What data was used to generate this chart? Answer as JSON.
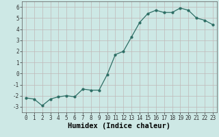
{
  "x": [
    0,
    1,
    2,
    3,
    4,
    5,
    6,
    7,
    8,
    9,
    10,
    11,
    12,
    13,
    14,
    15,
    16,
    17,
    18,
    19,
    20,
    21,
    22,
    23
  ],
  "y": [
    -2.2,
    -2.3,
    -2.9,
    -2.3,
    -2.1,
    -2.0,
    -2.1,
    -1.4,
    -1.5,
    -1.5,
    -0.1,
    1.7,
    2.0,
    3.3,
    4.6,
    5.4,
    5.7,
    5.5,
    5.5,
    5.9,
    5.7,
    5.0,
    4.8,
    4.4
  ],
  "line_color": "#2d6e65",
  "marker": "o",
  "marker_size": 2.0,
  "linewidth": 0.9,
  "background_color": "#cde8e5",
  "grid_color": "#c0b8b8",
  "xlabel": "Humidex (Indice chaleur)",
  "ylim": [
    -3.5,
    6.5
  ],
  "xlim": [
    -0.5,
    23.5
  ],
  "yticks": [
    -3,
    -2,
    -1,
    0,
    1,
    2,
    3,
    4,
    5,
    6
  ],
  "xticks": [
    0,
    1,
    2,
    3,
    4,
    5,
    6,
    7,
    8,
    9,
    10,
    11,
    12,
    13,
    14,
    15,
    16,
    17,
    18,
    19,
    20,
    21,
    22,
    23
  ],
  "tick_fontsize": 5.5,
  "xlabel_fontsize": 7.5,
  "xlabel_fontweight": "bold"
}
